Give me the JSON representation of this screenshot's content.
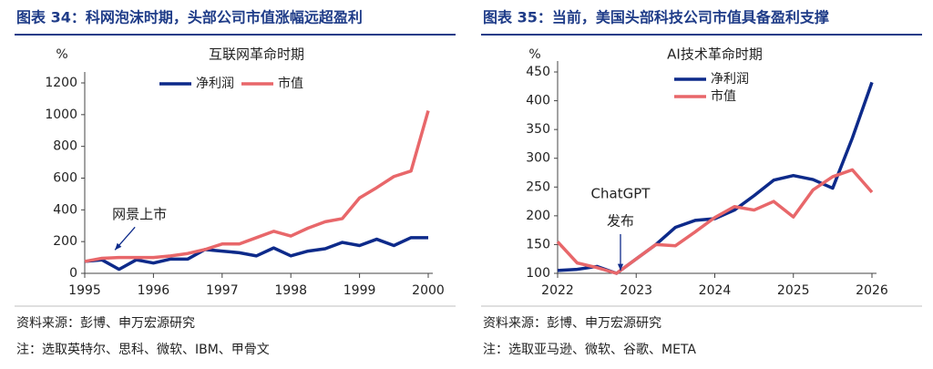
{
  "chart_data": [
    {
      "type": "line",
      "title": "图表 34：科网泡沫时期，头部公司市值涨幅远超盈利",
      "subtitle": "互联网革命时期",
      "ylabel": "%",
      "x": [
        1995,
        1995.25,
        1995.5,
        1995.75,
        1996,
        1996.25,
        1996.5,
        1996.75,
        1997,
        1997.25,
        1997.5,
        1997.75,
        1998,
        1998.25,
        1998.5,
        1998.75,
        1999,
        1999.25,
        1999.5,
        1999.75,
        2000
      ],
      "series": [
        {
          "name": "净利润",
          "color": "#0d2a8a",
          "values": [
            75,
            85,
            25,
            85,
            65,
            90,
            90,
            150,
            140,
            130,
            110,
            160,
            110,
            140,
            155,
            195,
            175,
            215,
            175,
            225,
            225
          ]
        },
        {
          "name": "市值",
          "color": "#e8676a",
          "values": [
            75,
            95,
            100,
            100,
            100,
            110,
            125,
            150,
            185,
            185,
            225,
            265,
            235,
            285,
            325,
            345,
            475,
            540,
            610,
            645,
            1025
          ]
        }
      ],
      "xlim": [
        1995,
        2000
      ],
      "xticks": [
        1995,
        1996,
        1997,
        1998,
        1999,
        2000
      ],
      "ylim": [
        0,
        1200
      ],
      "yticks": [
        0,
        200,
        400,
        600,
        800,
        1000,
        1200
      ],
      "legend": "top",
      "annotations": [
        {
          "lines": [
            "网景上市"
          ],
          "x": 1995.4,
          "y": 130
        }
      ],
      "source": "资料来源：彭博、申万宏源研究",
      "note": "注：选取英特尔、思科、微软、IBM、甲骨文"
    },
    {
      "type": "line",
      "title": "图表 35：当前，美国头部科技公司市值具备盈利支撑",
      "subtitle": "AI技术革命时期",
      "ylabel": "%",
      "x": [
        2022,
        2022.25,
        2022.5,
        2022.75,
        2023,
        2023.25,
        2023.5,
        2023.75,
        2024,
        2024.25,
        2024.5,
        2024.75,
        2025,
        2025.25,
        2025.5,
        2025.75,
        2026
      ],
      "series": [
        {
          "name": "净利润",
          "color": "#0d2a8a",
          "values": [
            105,
            107,
            112,
            100,
            125,
            150,
            180,
            192,
            195,
            210,
            235,
            262,
            270,
            263,
            248,
            335,
            432
          ]
        },
        {
          "name": "市值",
          "color": "#e8676a",
          "values": [
            155,
            118,
            110,
            100,
            125,
            150,
            148,
            172,
            197,
            216,
            210,
            225,
            198,
            245,
            268,
            280,
            241
          ]
        }
      ],
      "xlim": [
        2022,
        2026
      ],
      "xticks": [
        2022,
        2023,
        2024,
        2025,
        2026
      ],
      "ylim": [
        100,
        450
      ],
      "yticks": [
        100,
        150,
        200,
        250,
        300,
        350,
        400,
        450
      ],
      "legend": "upper left",
      "annotations": [
        {
          "lines": [
            "ChatGPT",
            "发布"
          ],
          "x": 2022.8,
          "y": 100
        }
      ],
      "source": "资料来源：彭博、申万宏源研究",
      "note": "注：选取亚马逊、微软、谷歌、META"
    }
  ]
}
